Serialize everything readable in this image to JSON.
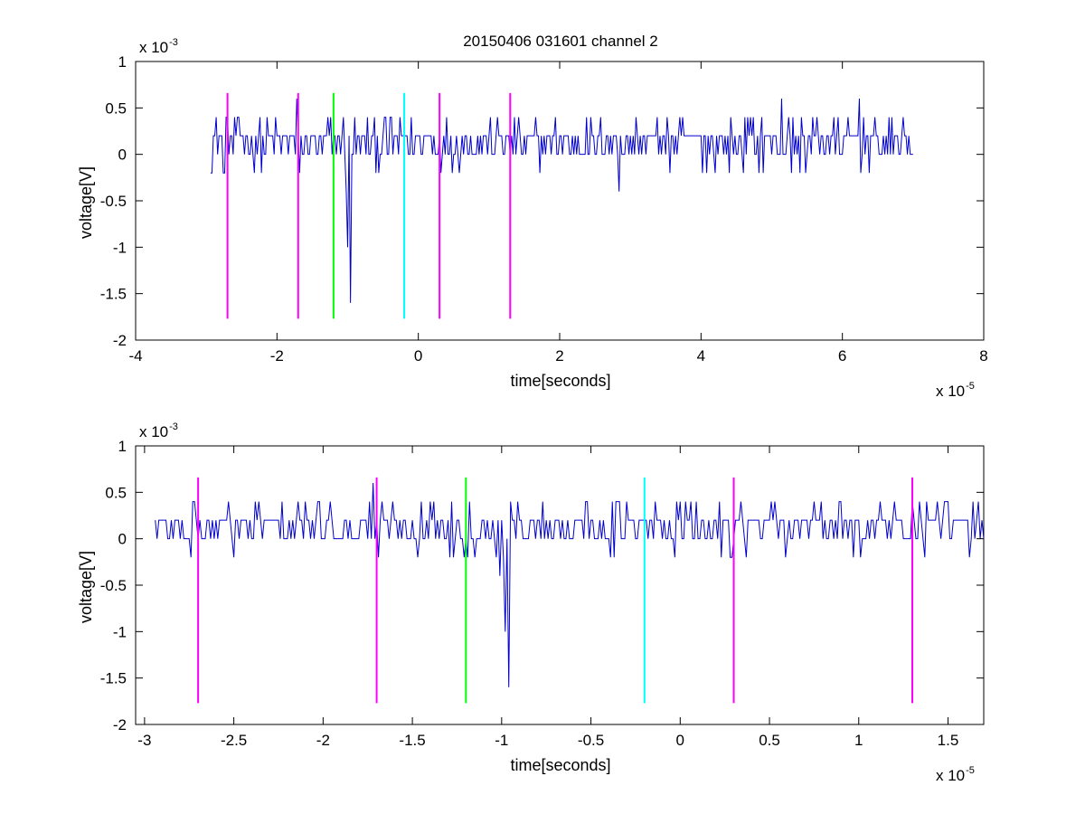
{
  "title": "20150406 031601 channel 2",
  "chart_data": [
    {
      "type": "line",
      "title": "20150406 031601 channel 2",
      "xlabel": "time[seconds]",
      "ylabel": "voltage[V]",
      "x_exponent_label": "x 10",
      "x_exponent": "-5",
      "y_exponent_label": "x 10",
      "y_exponent": "-3",
      "xlim": [
        -4,
        8
      ],
      "ylim": [
        -2,
        1
      ],
      "x_ticks": [
        -4,
        -2,
        0,
        2,
        4,
        6,
        8
      ],
      "x_tick_labels": [
        "-4",
        "-2",
        "0",
        "2",
        "4",
        "6",
        "8"
      ],
      "y_ticks": [
        -2,
        -1.5,
        -1,
        -0.5,
        0,
        0.5,
        1
      ],
      "y_tick_labels": [
        "-2",
        "-1.5",
        "-1",
        "-0.5",
        "0",
        "0.5",
        "1"
      ],
      "grid": false,
      "signal": {
        "color": "#0000cc",
        "x_start": -2.94,
        "x_end": 7.0,
        "step": 0.02,
        "baseline": [
          0,
          0.2
        ],
        "noise_levels": [
          -0.2,
          0,
          0.2,
          0.4
        ],
        "events": [
          {
            "x": -2.75,
            "y": -0.2
          },
          {
            "x": -2.72,
            "y": 0.4
          },
          {
            "x": -1.72,
            "y": 0.6
          },
          {
            "x": -1.68,
            "y": -0.2
          },
          {
            "x": -1.02,
            "y": -0.4
          },
          {
            "x": -0.99,
            "y": -1.0
          },
          {
            "x": -0.96,
            "y": -1.6
          },
          {
            "x": 2.85,
            "y": -0.4
          },
          {
            "x": 5.15,
            "y": 0.6
          },
          {
            "x": 6.25,
            "y": 0.6
          }
        ]
      },
      "markers": [
        {
          "x": -2.7,
          "ymin": -1.77,
          "ymax": 0.66,
          "color": "#ff00ff"
        },
        {
          "x": -1.7,
          "ymin": -1.77,
          "ymax": 0.66,
          "color": "#ff00ff"
        },
        {
          "x": -1.2,
          "ymin": -1.77,
          "ymax": 0.66,
          "color": "#00ff00"
        },
        {
          "x": -0.2,
          "ymin": -1.77,
          "ymax": 0.66,
          "color": "#00ffff"
        },
        {
          "x": 0.3,
          "ymin": -1.77,
          "ymax": 0.66,
          "color": "#ff00ff"
        },
        {
          "x": 1.3,
          "ymin": -1.77,
          "ymax": 0.66,
          "color": "#ff00ff"
        }
      ]
    },
    {
      "type": "line",
      "title": "",
      "xlabel": "time[seconds]",
      "ylabel": "voltage[V]",
      "x_exponent_label": "x 10",
      "x_exponent": "-5",
      "y_exponent_label": "x 10",
      "y_exponent": "-3",
      "xlim": [
        -3.05,
        1.7
      ],
      "ylim": [
        -2,
        1
      ],
      "x_ticks": [
        -3,
        -2.5,
        -2,
        -1.5,
        -1,
        -0.5,
        0,
        0.5,
        1,
        1.5
      ],
      "x_tick_labels": [
        "-3",
        "-2.5",
        "-2",
        "-1.5",
        "-1",
        "-0.5",
        "0",
        "0.5",
        "1",
        "1.5"
      ],
      "y_ticks": [
        -2,
        -1.5,
        -1,
        -0.5,
        0,
        0.5,
        1
      ],
      "y_tick_labels": [
        "-2",
        "-1.5",
        "-1",
        "-0.5",
        "0",
        "0.5",
        "1"
      ],
      "grid": false,
      "signal": {
        "color": "#0000cc",
        "x_start": -2.94,
        "x_end": 1.7,
        "step": 0.01,
        "baseline": [
          0,
          0.2
        ],
        "noise_levels": [
          -0.2,
          0,
          0.2,
          0.4
        ],
        "events": [
          {
            "x": -2.74,
            "y": -0.2
          },
          {
            "x": -2.72,
            "y": 0.4
          },
          {
            "x": -1.72,
            "y": 0.6
          },
          {
            "x": -1.69,
            "y": -0.2
          },
          {
            "x": -1.01,
            "y": -0.4
          },
          {
            "x": -0.98,
            "y": -1.0
          },
          {
            "x": -0.96,
            "y": -1.6
          },
          {
            "x": 1.62,
            "y": -0.2
          }
        ]
      },
      "markers": [
        {
          "x": -2.7,
          "ymin": -1.77,
          "ymax": 0.66,
          "color": "#ff00ff"
        },
        {
          "x": -1.7,
          "ymin": -1.77,
          "ymax": 0.66,
          "color": "#ff00ff"
        },
        {
          "x": -1.2,
          "ymin": -1.77,
          "ymax": 0.66,
          "color": "#00ff00"
        },
        {
          "x": -0.2,
          "ymin": -1.77,
          "ymax": 0.66,
          "color": "#00ffff"
        },
        {
          "x": 0.3,
          "ymin": -1.77,
          "ymax": 0.66,
          "color": "#ff00ff"
        },
        {
          "x": 1.3,
          "ymin": -1.77,
          "ymax": 0.66,
          "color": "#ff00ff"
        }
      ]
    }
  ]
}
